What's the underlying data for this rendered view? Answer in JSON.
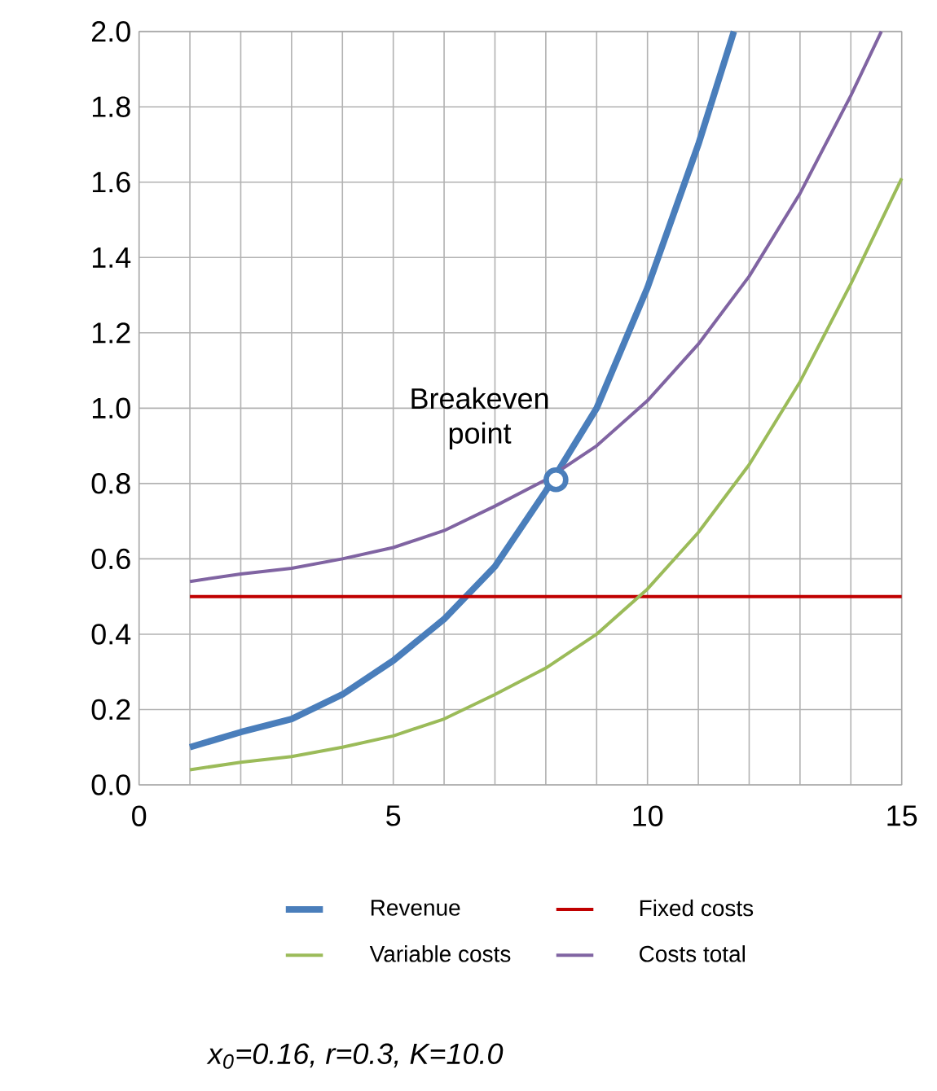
{
  "chart_data": {
    "type": "line",
    "xlim": [
      0,
      15
    ],
    "ylim": [
      0,
      2
    ],
    "xticks": [
      0,
      {
        "value": 1,
        "label": null
      },
      {
        "value": 2,
        "label": null
      },
      {
        "value": 3,
        "label": null
      },
      {
        "value": 4,
        "label": null
      },
      5,
      {
        "value": 6,
        "label": null
      },
      {
        "value": 7,
        "label": null
      },
      {
        "value": 8,
        "label": null
      },
      {
        "value": 9,
        "label": null
      },
      10,
      {
        "value": 11,
        "label": null
      },
      {
        "value": 12,
        "label": null
      },
      {
        "value": 13,
        "label": null
      },
      {
        "value": 14,
        "label": null
      },
      15
    ],
    "yticks": [
      {
        "value": 0,
        "label": "0.0"
      },
      0.2,
      0.4,
      0.6,
      0.8,
      {
        "value": 1,
        "label": "1.0"
      },
      1.2,
      1.4,
      1.6,
      1.8,
      {
        "value": 2,
        "label": "2.0"
      }
    ],
    "grid": true,
    "legend": "bottom",
    "marker": "none",
    "line_style": "solid",
    "series": [
      {
        "name": "Revenue",
        "color": "#4a7ebb",
        "x": [
          1,
          2,
          3,
          4,
          5,
          6,
          7,
          8,
          9,
          10,
          11,
          11.7
        ],
        "values": [
          0.1,
          0.14,
          0.175,
          0.24,
          0.33,
          0.44,
          0.58,
          0.78,
          1.0,
          1.32,
          1.7,
          2.0
        ]
      },
      {
        "name": "Fixed costs",
        "color": "#c00000",
        "x": [
          1,
          2,
          3,
          4,
          5,
          6,
          7,
          8,
          9,
          10,
          11,
          12,
          13,
          14,
          15
        ],
        "values": [
          0.5,
          0.5,
          0.5,
          0.5,
          0.5,
          0.5,
          0.5,
          0.5,
          0.5,
          0.5,
          0.5,
          0.5,
          0.5,
          0.5,
          0.5
        ]
      },
      {
        "name": "Variable costs",
        "color": "#9bbb59",
        "x": [
          1,
          2,
          3,
          4,
          5,
          6,
          7,
          8,
          9,
          10,
          11,
          12,
          13,
          14,
          15
        ],
        "values": [
          0.04,
          0.06,
          0.075,
          0.1,
          0.13,
          0.175,
          0.24,
          0.31,
          0.4,
          0.52,
          0.67,
          0.85,
          1.07,
          1.33,
          1.61
        ]
      },
      {
        "name": "Costs total",
        "color": "#8064a2",
        "x": [
          1,
          2,
          3,
          4,
          5,
          6,
          7,
          8,
          9,
          10,
          11,
          12,
          13,
          14,
          14.6
        ],
        "values": [
          0.54,
          0.56,
          0.575,
          0.6,
          0.63,
          0.675,
          0.74,
          0.81,
          0.9,
          1.02,
          1.17,
          1.35,
          1.57,
          1.83,
          2.0
        ]
      },
      {
        "type": "scatter",
        "marker": "circle",
        "color": "#4a7ebb",
        "x": [
          8.2
        ],
        "values": [
          0.81
        ]
      }
    ],
    "annotations": [
      {
        "text": "Breakeven point",
        "x": 8.2,
        "y": 0.81
      },
      "x$_{0}$=0.16, r=0.3, K=10.0"
    ]
  }
}
